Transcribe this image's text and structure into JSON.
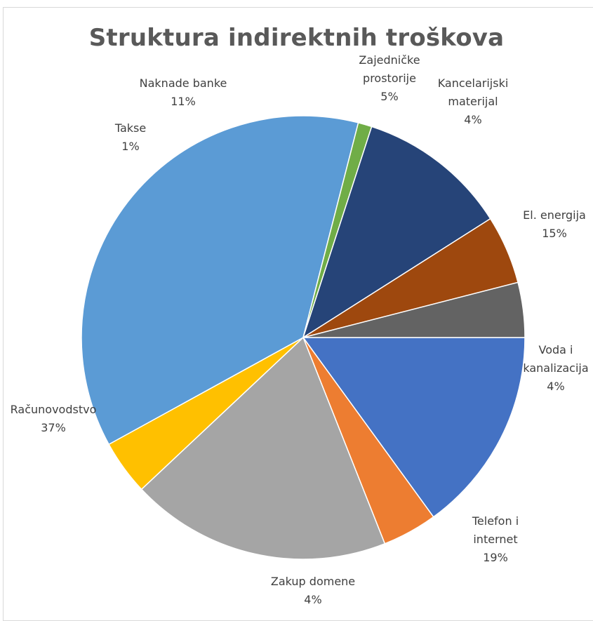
{
  "chart_data": {
    "type": "pie",
    "title": "Struktura indirektnih troškova",
    "start_angle_deg": 0,
    "slices": [
      {
        "label_lines": [
          "El. energija"
        ],
        "pct_label": "15%",
        "value": 15,
        "color": "#4472C4"
      },
      {
        "label_lines": [
          "Voda i",
          "kanalizacija"
        ],
        "pct_label": "4%",
        "value": 4,
        "color": "#ED7D31"
      },
      {
        "label_lines": [
          "Telefon i",
          "internet"
        ],
        "pct_label": "19%",
        "value": 19,
        "color": "#A5A5A5"
      },
      {
        "label_lines": [
          "Zakup domene"
        ],
        "pct_label": "4%",
        "value": 4,
        "color": "#FFC000"
      },
      {
        "label_lines": [
          "Računovodstvo"
        ],
        "pct_label": "37%",
        "value": 37,
        "color": "#5B9BD5"
      },
      {
        "label_lines": [
          "Takse"
        ],
        "pct_label": "1%",
        "value": 1,
        "color": "#70AD47"
      },
      {
        "label_lines": [
          "Naknade banke"
        ],
        "pct_label": "11%",
        "value": 11,
        "color": "#264478"
      },
      {
        "label_lines": [
          "Zajedničke",
          "prostorije"
        ],
        "pct_label": "5%",
        "value": 5,
        "color": "#9E480E"
      },
      {
        "label_lines": [
          "Kancelarijski",
          "materijal"
        ],
        "pct_label": "4%",
        "value": 4,
        "color": "#636363"
      }
    ]
  }
}
